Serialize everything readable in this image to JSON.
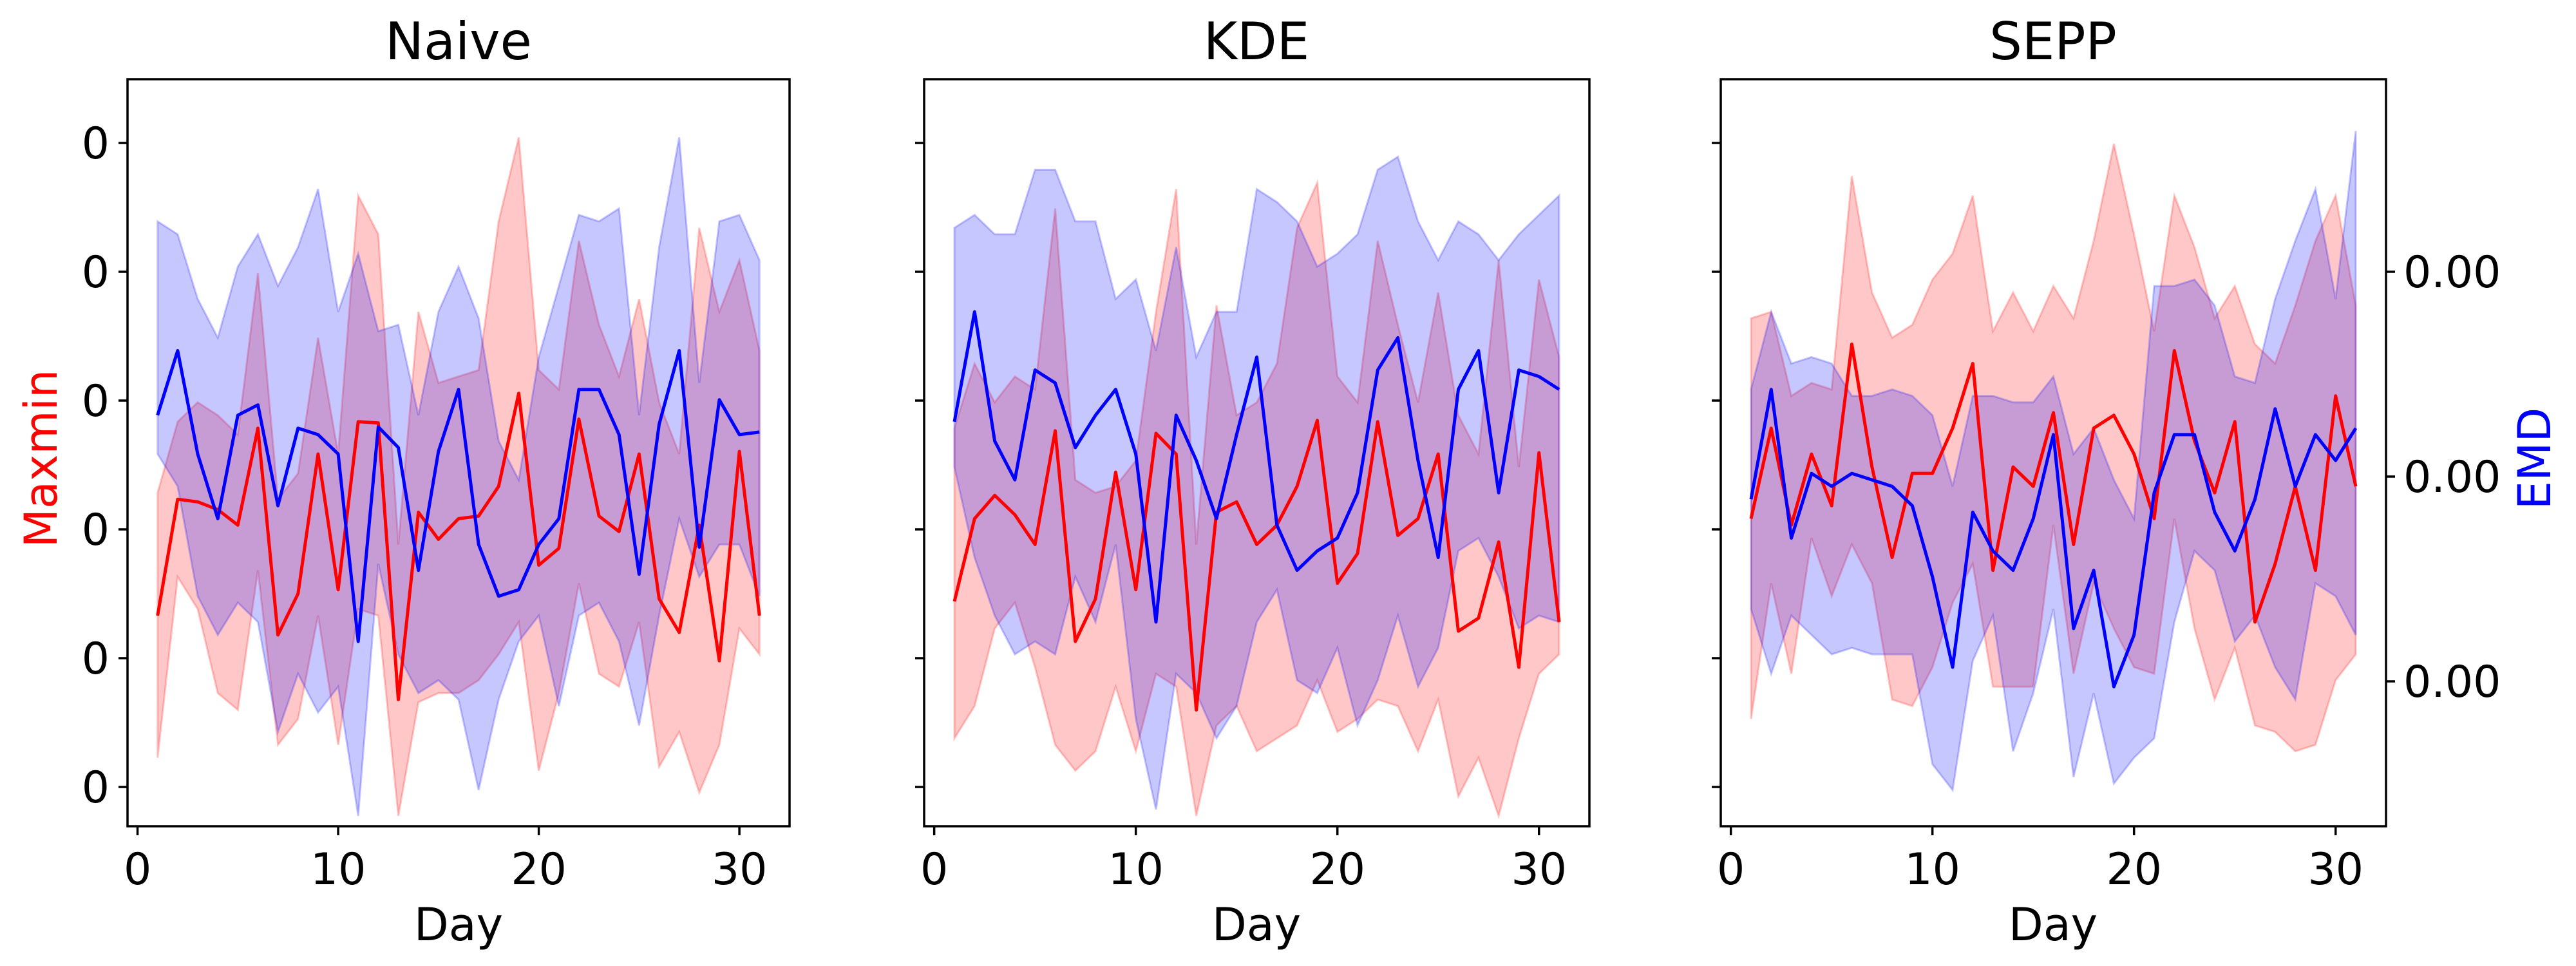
{
  "chart_data": {
    "type": "line",
    "x_ticks": [
      0,
      10,
      20,
      30
    ],
    "x_range": [
      -0.5,
      32.5
    ],
    "x_label": "Day",
    "left_axis": {
      "label": "Maxmin",
      "color": "#ff0000",
      "tick_labels": [
        "0",
        "0",
        "0",
        "0",
        "0",
        "0"
      ]
    },
    "right_axis": {
      "label": "EMD",
      "color": "#0000ff",
      "tick_labels": [
        "0.00",
        "0.00",
        "0.00"
      ]
    },
    "panels": [
      {
        "title": "Naive",
        "y_range": [
          -0.08,
          5.7
        ],
        "x": [
          1,
          2,
          3,
          4,
          5,
          6,
          7,
          8,
          9,
          10,
          11,
          12,
          13,
          14,
          15,
          16,
          17,
          18,
          19,
          20,
          21,
          22,
          23,
          24,
          25,
          26,
          27,
          28,
          29,
          30,
          31
        ],
        "series": [
          {
            "name": "Maxmin",
            "color": "#ff0000",
            "values": [
              1.55,
              2.45,
              2.43,
              2.37,
              2.25,
              3.0,
              1.4,
              1.72,
              2.8,
              1.75,
              3.05,
              3.04,
              0.9,
              2.35,
              2.14,
              2.3,
              2.32,
              2.55,
              3.27,
              1.94,
              2.07,
              3.07,
              2.32,
              2.2,
              2.8,
              1.68,
              1.42,
              2.25,
              1.2,
              2.82,
              1.55
            ],
            "upper": [
              2.5,
              3.05,
              3.2,
              3.1,
              2.95,
              4.2,
              2.45,
              2.65,
              3.7,
              2.8,
              4.8,
              4.5,
              2.1,
              3.9,
              3.35,
              3.4,
              3.45,
              4.6,
              5.25,
              3.45,
              3.3,
              4.45,
              3.8,
              3.4,
              4.0,
              3.2,
              2.8,
              4.55,
              3.9,
              4.3,
              3.6
            ],
            "lower": [
              0.45,
              1.85,
              1.6,
              0.95,
              0.82,
              1.9,
              0.55,
              0.75,
              1.55,
              0.55,
              1.6,
              1.55,
              0.0,
              0.88,
              0.95,
              0.95,
              1.05,
              1.25,
              1.5,
              0.35,
              0.95,
              1.8,
              1.1,
              1.0,
              1.5,
              0.38,
              0.65,
              0.18,
              0.55,
              1.45,
              1.25
            ]
          },
          {
            "name": "EMD",
            "color": "#0000ff",
            "values": [
              3.1,
              3.6,
              2.8,
              2.3,
              3.1,
              3.18,
              2.4,
              3.0,
              2.95,
              2.8,
              1.35,
              3.01,
              2.85,
              1.9,
              2.82,
              3.3,
              2.1,
              1.7,
              1.75,
              2.1,
              2.3,
              3.3,
              3.3,
              2.95,
              1.87,
              3.03,
              3.6,
              2.08,
              3.22,
              2.95,
              2.97
            ],
            "upper": [
              4.6,
              4.5,
              4.0,
              3.7,
              4.25,
              4.5,
              4.1,
              4.4,
              4.85,
              3.9,
              4.35,
              3.75,
              3.8,
              3.1,
              3.9,
              4.25,
              3.85,
              2.9,
              2.6,
              3.55,
              4.1,
              4.65,
              4.6,
              4.7,
              3.1,
              4.4,
              5.25,
              3.35,
              4.6,
              4.65,
              4.3
            ],
            "lower": [
              2.8,
              2.55,
              1.7,
              1.4,
              1.65,
              1.5,
              0.65,
              1.1,
              0.8,
              1.0,
              0.0,
              1.95,
              1.25,
              0.95,
              1.05,
              0.9,
              0.2,
              0.9,
              1.35,
              1.55,
              0.85,
              1.55,
              1.65,
              1.35,
              0.7,
              1.55,
              2.3,
              1.85,
              2.1,
              2.1,
              1.7
            ]
          }
        ]
      },
      {
        "title": "KDE",
        "y_range": [
          -0.08,
          5.7
        ],
        "x": [
          1,
          2,
          3,
          4,
          5,
          6,
          7,
          8,
          9,
          10,
          11,
          12,
          13,
          14,
          15,
          16,
          17,
          18,
          19,
          20,
          21,
          22,
          23,
          24,
          25,
          26,
          27,
          28,
          29,
          30,
          31
        ],
        "series": [
          {
            "name": "Maxmin",
            "color": "#ff0000",
            "values": [
              1.66,
              2.3,
              2.48,
              2.33,
              2.1,
              2.98,
              1.35,
              1.68,
              2.66,
              1.75,
              2.96,
              2.8,
              0.82,
              2.35,
              2.43,
              2.1,
              2.25,
              2.55,
              3.06,
              1.8,
              2.03,
              3.05,
              2.17,
              2.3,
              2.8,
              1.43,
              1.53,
              2.12,
              1.15,
              2.81,
              1.5
            ],
            "upper": [
              3.0,
              3.5,
              3.2,
              3.4,
              3.3,
              4.7,
              2.6,
              2.5,
              2.55,
              2.75,
              3.9,
              4.85,
              2.1,
              3.95,
              3.1,
              3.2,
              3.5,
              4.55,
              4.9,
              3.4,
              3.2,
              4.45,
              3.8,
              3.2,
              4.05,
              3.1,
              2.8,
              4.3,
              2.7,
              4.15,
              3.55
            ],
            "lower": [
              0.6,
              0.85,
              1.45,
              1.65,
              1.15,
              0.55,
              0.35,
              0.5,
              1.0,
              0.5,
              1.1,
              1.0,
              0.0,
              0.7,
              0.85,
              0.5,
              0.6,
              0.7,
              1.05,
              0.65,
              0.75,
              0.9,
              0.85,
              0.5,
              0.9,
              0.15,
              0.45,
              0.0,
              0.6,
              1.1,
              1.25
            ]
          },
          {
            "name": "EMD",
            "color": "#0000ff",
            "values": [
              3.05,
              3.9,
              2.9,
              2.6,
              3.45,
              3.35,
              2.85,
              3.1,
              3.3,
              2.8,
              1.5,
              3.1,
              2.75,
              2.3,
              2.95,
              3.55,
              2.25,
              1.9,
              2.05,
              2.15,
              2.5,
              3.45,
              3.7,
              2.75,
              2.0,
              3.3,
              3.6,
              2.5,
              3.45,
              3.4,
              3.3
            ],
            "upper": [
              4.55,
              4.65,
              4.5,
              4.5,
              5.0,
              5.0,
              4.6,
              4.6,
              4.0,
              4.15,
              3.6,
              4.4,
              3.55,
              3.9,
              3.9,
              4.85,
              4.75,
              4.6,
              4.25,
              4.35,
              4.5,
              5.0,
              5.1,
              4.6,
              4.3,
              4.6,
              4.5,
              4.3,
              4.5,
              4.65,
              4.8
            ],
            "lower": [
              2.7,
              2.0,
              1.55,
              1.25,
              1.35,
              1.25,
              1.85,
              1.5,
              2.1,
              0.75,
              0.05,
              1.1,
              0.95,
              0.6,
              0.85,
              1.5,
              1.75,
              1.05,
              0.95,
              1.3,
              0.7,
              1.05,
              1.55,
              1.0,
              1.3,
              2.05,
              2.15,
              1.85,
              1.45,
              1.55,
              1.5
            ]
          }
        ]
      },
      {
        "title": "SEPP",
        "y_range": [
          -0.08,
          5.7
        ],
        "x": [
          1,
          2,
          3,
          4,
          5,
          6,
          7,
          8,
          9,
          10,
          11,
          12,
          13,
          14,
          15,
          16,
          17,
          18,
          19,
          20,
          21,
          22,
          23,
          24,
          25,
          26,
          27,
          28,
          29,
          30,
          31
        ],
        "series": [
          {
            "name": "Maxmin",
            "color": "#ff0000",
            "values": [
              2.3,
              3.0,
              2.25,
              2.8,
              2.4,
              3.65,
              2.7,
              2.0,
              2.65,
              2.65,
              3.0,
              3.5,
              1.9,
              2.7,
              2.55,
              3.12,
              2.1,
              3.0,
              3.1,
              2.8,
              2.3,
              3.6,
              2.9,
              2.5,
              3.05,
              1.5,
              1.95,
              2.55,
              1.9,
              3.25,
              2.55
            ],
            "upper": [
              3.85,
              3.9,
              3.25,
              3.35,
              3.3,
              4.95,
              4.05,
              3.7,
              3.8,
              4.15,
              4.35,
              4.8,
              3.75,
              4.05,
              3.75,
              4.1,
              3.85,
              4.45,
              5.2,
              4.5,
              3.75,
              4.8,
              4.4,
              3.85,
              4.1,
              3.65,
              3.5,
              3.95,
              4.45,
              4.8,
              3.95
            ],
            "lower": [
              0.75,
              1.8,
              1.1,
              2.15,
              1.7,
              2.1,
              1.8,
              0.9,
              0.85,
              1.15,
              1.65,
              1.95,
              1.0,
              1.0,
              1.0,
              2.25,
              1.1,
              1.8,
              1.45,
              1.15,
              1.1,
              2.3,
              1.45,
              0.9,
              1.3,
              0.7,
              0.65,
              0.5,
              0.55,
              1.05,
              1.25
            ]
          },
          {
            "name": "EMD",
            "color": "#0000ff",
            "values": [
              2.45,
              3.3,
              2.15,
              2.65,
              2.55,
              2.65,
              2.6,
              2.55,
              2.4,
              1.85,
              1.15,
              2.35,
              2.05,
              1.9,
              2.3,
              2.95,
              1.45,
              1.9,
              1.0,
              1.4,
              2.5,
              2.95,
              2.95,
              2.35,
              2.05,
              2.45,
              3.15,
              2.55,
              2.95,
              2.75,
              3.0
            ],
            "upper": [
              3.3,
              3.9,
              3.5,
              3.55,
              3.5,
              3.25,
              3.25,
              3.3,
              3.25,
              3.1,
              2.55,
              3.25,
              3.25,
              3.2,
              3.2,
              3.4,
              2.8,
              3.0,
              2.6,
              2.3,
              4.1,
              4.1,
              4.15,
              3.95,
              3.4,
              3.35,
              4.0,
              4.45,
              4.85,
              4.0,
              5.3
            ],
            "lower": [
              1.6,
              1.1,
              1.55,
              1.4,
              1.25,
              1.3,
              1.25,
              1.25,
              1.25,
              0.4,
              0.2,
              1.2,
              1.55,
              0.5,
              0.95,
              1.6,
              0.3,
              0.95,
              0.25,
              0.45,
              0.6,
              1.5,
              2.05,
              1.9,
              1.35,
              1.55,
              1.15,
              0.9,
              1.8,
              1.7,
              1.4
            ]
          }
        ]
      }
    ]
  }
}
